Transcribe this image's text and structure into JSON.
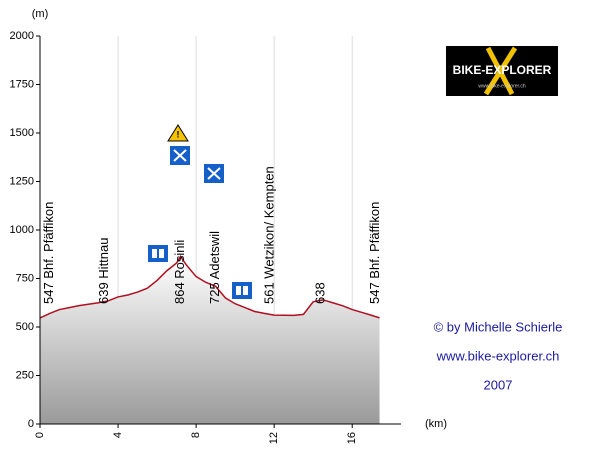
{
  "chart_data": {
    "type": "area",
    "y_label": "(m)",
    "x_label": "(km)",
    "x": [
      0,
      0.5,
      1,
      1.5,
      2,
      3,
      3.5,
      4,
      4.5,
      5,
      5.5,
      6,
      6.5,
      7,
      7.2,
      7.5,
      8,
      8.5,
      9,
      9.5,
      10,
      10.5,
      11,
      11.5,
      12,
      13,
      13.5,
      14,
      14.5,
      15,
      15.5,
      16,
      16.5,
      17,
      17.4
    ],
    "values": [
      547,
      570,
      590,
      600,
      610,
      625,
      635,
      655,
      665,
      680,
      700,
      740,
      790,
      830,
      864,
      820,
      760,
      730,
      710,
      650,
      620,
      600,
      580,
      570,
      561,
      560,
      565,
      630,
      640,
      625,
      610,
      590,
      575,
      560,
      547
    ],
    "color": "#b01020",
    "xlim": [
      0,
      18.5
    ],
    "xticks": [
      0,
      4,
      8,
      12,
      16
    ],
    "ylim": [
      0,
      2000
    ],
    "yticks": [
      0,
      250,
      500,
      750,
      1000,
      1250,
      1500,
      1750,
      2000
    ],
    "grid": true,
    "annotations": [
      {
        "text": "547 Bhf. Pfäffikon",
        "x": 0.5
      },
      {
        "text": "639 Hittnau",
        "x": 3.3
      },
      {
        "text": "864 Rosinli",
        "x": 7.2
      },
      {
        "text": "725 Adetswil",
        "x": 9.0
      },
      {
        "text": "561 Wetzikon/ Kempten",
        "x": 11.8
      },
      {
        "text": "638",
        "x": 14.4
      },
      {
        "text": "547 Bhf. Pfäffikon",
        "x": 17.2
      }
    ],
    "logo": {
      "text": "BIKE-EXPLORER",
      "url": "www.bike-explorer.ch"
    },
    "credits": [
      "© by Michelle Schierle",
      "www.bike-explorer.ch",
      "2007"
    ]
  }
}
